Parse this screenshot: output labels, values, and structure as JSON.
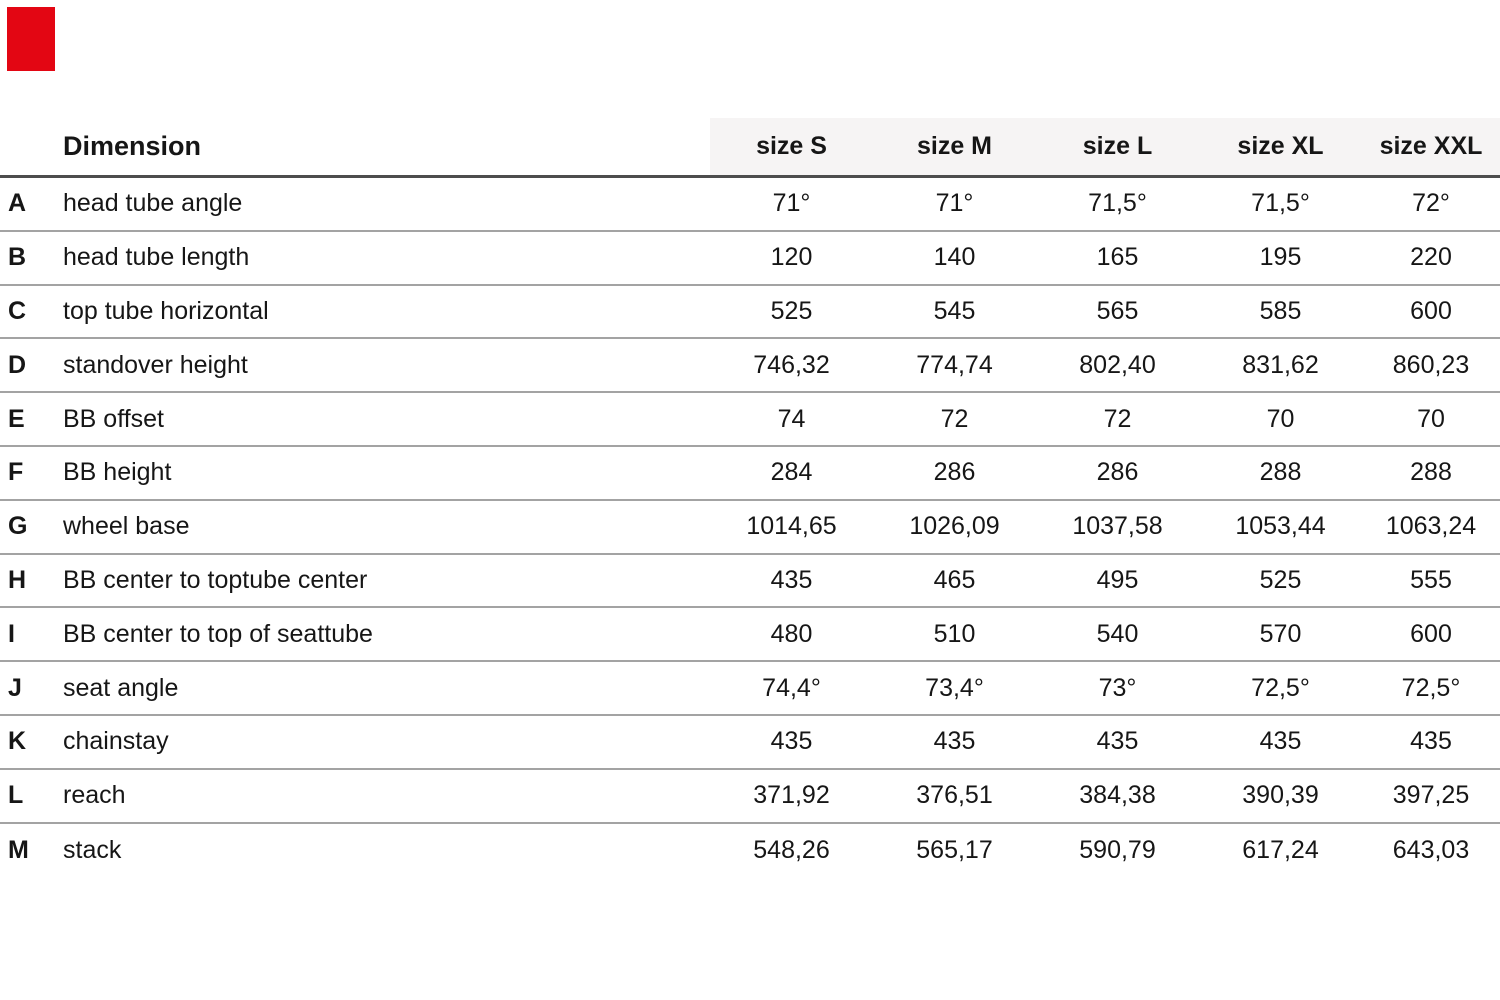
{
  "page": {
    "background": "#ffffff"
  },
  "red_marker": {
    "color": "#e30613"
  },
  "chart_data": {
    "type": "table",
    "title": "",
    "columns": [
      "Dimension",
      "size S",
      "size M",
      "size L",
      "size XL",
      "size XXL"
    ],
    "rows": [
      {
        "letter": "A",
        "label": "head tube angle",
        "values": [
          "71°",
          "71°",
          "71,5°",
          "71,5°",
          "72°"
        ]
      },
      {
        "letter": "B",
        "label": "head tube length",
        "values": [
          "120",
          "140",
          "165",
          "195",
          "220"
        ]
      },
      {
        "letter": "C",
        "label": "top tube horizontal",
        "values": [
          "525",
          "545",
          "565",
          "585",
          "600"
        ]
      },
      {
        "letter": "D",
        "label": "standover height",
        "values": [
          "746,32",
          "774,74",
          "802,40",
          "831,62",
          "860,23"
        ]
      },
      {
        "letter": "E",
        "label": "BB offset",
        "values": [
          "74",
          "72",
          "72",
          "70",
          "70"
        ]
      },
      {
        "letter": "F",
        "label": "BB height",
        "values": [
          "284",
          "286",
          "286",
          "288",
          "288"
        ]
      },
      {
        "letter": "G",
        "label": "wheel base",
        "values": [
          "1014,65",
          "1026,09",
          "1037,58",
          "1053,44",
          "1063,24"
        ]
      },
      {
        "letter": "H",
        "label": "BB center to toptube center",
        "values": [
          "435",
          "465",
          "495",
          "525",
          "555"
        ]
      },
      {
        "letter": "I",
        "label": "BB center to top of seattube",
        "values": [
          "480",
          "510",
          "540",
          "570",
          "600"
        ]
      },
      {
        "letter": "J",
        "label": "seat angle",
        "values": [
          "74,4°",
          "73,4°",
          "73°",
          "72,5°",
          "72,5°"
        ]
      },
      {
        "letter": "K",
        "label": "chainstay",
        "values": [
          "435",
          "435",
          "435",
          "435",
          "435"
        ]
      },
      {
        "letter": "L",
        "label": "reach",
        "values": [
          "371,92",
          "376,51",
          "384,38",
          "390,39",
          "397,25"
        ]
      },
      {
        "letter": "M",
        "label": "stack",
        "values": [
          "548,26",
          "565,17",
          "590,79",
          "617,24",
          "643,03"
        ]
      }
    ],
    "layout": {
      "header_band_color": "#f6f4f4",
      "header_rule_color": "#4d4d4d",
      "row_rule_color": "#a3a3a3",
      "text_color": "#161616",
      "grid": "horizontal-rules-only",
      "value_alignment": "center"
    }
  }
}
